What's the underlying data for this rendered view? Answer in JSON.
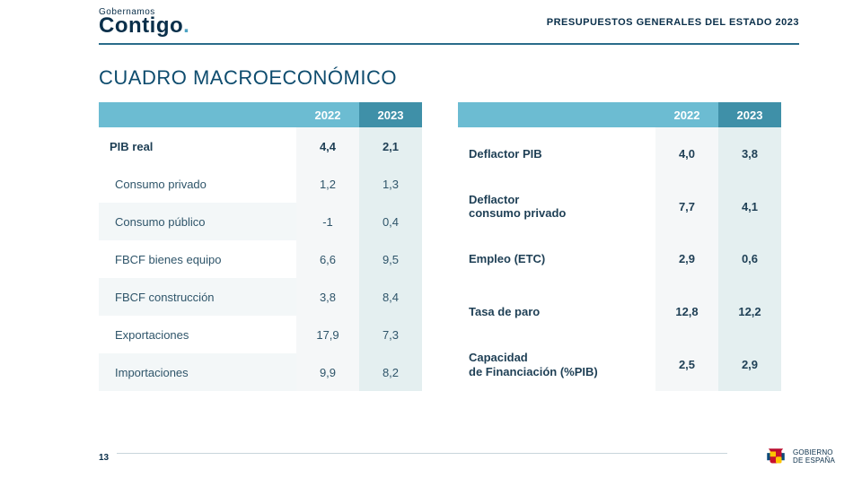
{
  "header": {
    "logo_small": "Gobernamos",
    "logo_big": "Contigo",
    "right": "PRESUPUESTOS GENERALES DEL ESTADO 2023"
  },
  "title": "CUADRO MACROECONÓMICO",
  "left_table": {
    "h2022": "2022",
    "h2023": "2023",
    "rows": [
      {
        "label": "PIB real",
        "v22": "4,4",
        "v23": "2,1",
        "bold": true
      },
      {
        "label": "Consumo privado",
        "v22": "1,2",
        "v23": "1,3"
      },
      {
        "label": "Consumo público",
        "v22": "-1",
        "v23": "0,4"
      },
      {
        "label": "FBCF bienes equipo",
        "v22": "6,6",
        "v23": "9,5"
      },
      {
        "label": "FBCF construcción",
        "v22": "3,8",
        "v23": "8,4"
      },
      {
        "label": "Exportaciones",
        "v22": "17,9",
        "v23": "7,3"
      },
      {
        "label": "Importaciones",
        "v22": "9,9",
        "v23": "8,2"
      }
    ]
  },
  "right_table": {
    "h2022": "2022",
    "h2023": "2023",
    "rows": [
      {
        "label": "Deflactor PIB",
        "v22": "4,0",
        "v23": "3,8",
        "bold": true
      },
      {
        "label": "Deflactor\nconsumo privado",
        "v22": "7,7",
        "v23": "4,1",
        "bold": true
      },
      {
        "label": "Empleo (ETC)",
        "v22": "2,9",
        "v23": "0,6",
        "bold": true
      },
      {
        "label": "Tasa de paro",
        "v22": "12,8",
        "v23": "12,2",
        "bold": true
      },
      {
        "label": "Capacidad\nde Financiación (%PIB)",
        "v22": "2,5",
        "v23": "2,9",
        "bold": true
      }
    ]
  },
  "footer": {
    "page": "13",
    "gov1": "GOBIERNO",
    "gov2": "DE ESPAÑA"
  },
  "colors": {
    "header_bg_light": "#6cbcd2",
    "header_bg_dark": "#3f90a8",
    "col22_bg": "#f5f7f8",
    "col23_bg": "#e4eff0",
    "text": "#2f556a",
    "title": "#0e4c6e"
  }
}
